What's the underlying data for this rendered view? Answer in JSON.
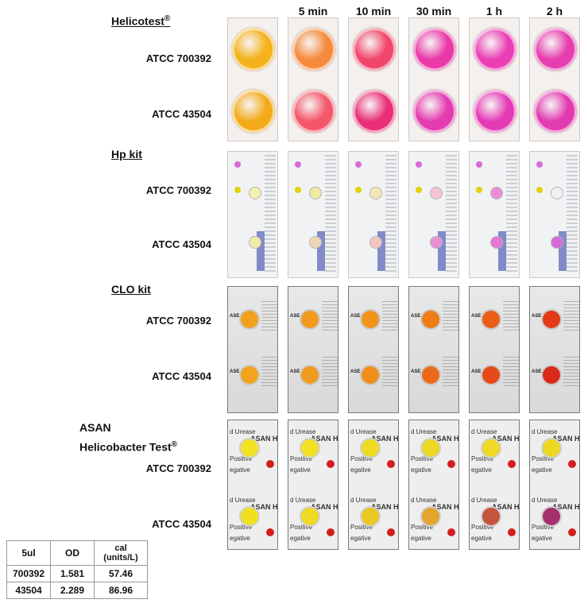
{
  "timepoints": [
    "5 min",
    "10 min",
    "30 min",
    "1 h",
    "2 h"
  ],
  "kits": {
    "helicotest": {
      "name": "Helicotest",
      "mark": "®"
    },
    "hp": {
      "name": "Hp kit"
    },
    "clo": {
      "name": "CLO kit",
      "panel_text": "ASE TEST"
    },
    "asan": {
      "name_line1": "ASAN",
      "name_line2": "Helicobacter Test",
      "mark": "®",
      "panel_brand": "ASAN Helico",
      "panel_word_top": "d Urease",
      "panel_word_mid": "Positive",
      "panel_word_low": "egative"
    }
  },
  "strains": [
    "ATCC 700392",
    "ATCC 43504"
  ],
  "well_colors": {
    "helicotest": [
      [
        "#f4b21c",
        "#f58a3c",
        "#f1466b",
        "#e93aa8",
        "#ea3fb5",
        "#e63db0"
      ],
      [
        "#f3aa1a",
        "#f4566a",
        "#ea2f78",
        "#e33bb0",
        "#e53ab6",
        "#e23ab0"
      ]
    ],
    "hp": [
      [
        "#f4f0b0",
        "#f1eaa3",
        "#f2e7b9",
        "#f4c4d6",
        "#ec8cd8",
        "#f1f0f2"
      ],
      [
        "#f1eaa8",
        "#f0d6b6",
        "#f2c4c4",
        "#e98fd6",
        "#e376d8",
        "#d76ad6"
      ]
    ],
    "clo": [
      [
        "#f3a11b",
        "#f39a1c",
        "#f2941a",
        "#ee7d18",
        "#ec5d18",
        "#e33a16"
      ],
      [
        "#f3a41c",
        "#f09b1d",
        "#ef8f1a",
        "#ec6a17",
        "#e74a18",
        "#d92a18"
      ]
    ],
    "asan": [
      [
        "#f2e324",
        "#f1e024",
        "#eedc22",
        "#ecd822",
        "#eed924",
        "#ecd823"
      ],
      [
        "#f1df22",
        "#efd923",
        "#e9c823",
        "#e3a52b",
        "#c5543e",
        "#a6306e"
      ]
    ]
  },
  "table": {
    "headers": [
      "5ul",
      "OD",
      "cal\n(units/L)"
    ],
    "rows": [
      [
        "700392",
        "1.581",
        "57.46"
      ],
      [
        "43504",
        "2.289",
        "86.96"
      ]
    ]
  }
}
